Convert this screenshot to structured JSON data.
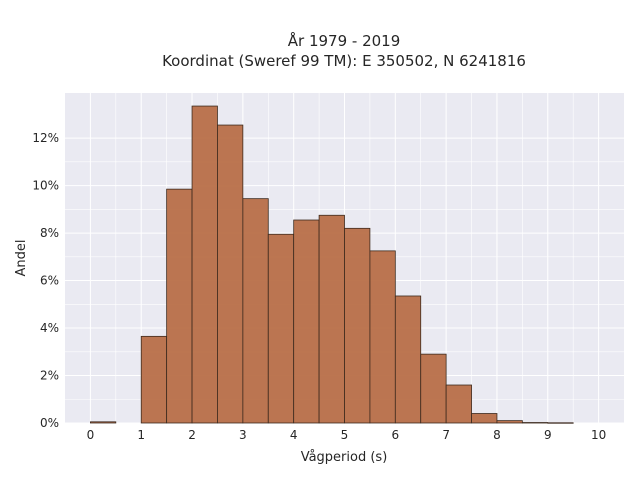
{
  "chart_data": {
    "type": "bar",
    "title_line1": "År 1979 - 2019",
    "title_line2": "Koordinat (Sweref 99 TM): E 350502, N 6241816",
    "xlabel": "Vågperiod (s)",
    "ylabel": "Andel",
    "xlim": [
      -0.5,
      10.5
    ],
    "ylim": [
      0,
      13.9
    ],
    "x_ticks": [
      0,
      1,
      2,
      3,
      4,
      5,
      6,
      7,
      8,
      9,
      10
    ],
    "x_tick_labels": [
      "0",
      "1",
      "2",
      "3",
      "4",
      "5",
      "6",
      "7",
      "8",
      "9",
      "10"
    ],
    "y_ticks": [
      0,
      2,
      4,
      6,
      8,
      10,
      12
    ],
    "y_tick_labels": [
      "0%",
      "2%",
      "4%",
      "6%",
      "8%",
      "10%",
      "12%"
    ],
    "bin_width": 0.5,
    "bins": [
      {
        "start": 0.0,
        "value": 0.05
      },
      {
        "start": 0.5,
        "value": 0.0
      },
      {
        "start": 1.0,
        "value": 3.65
      },
      {
        "start": 1.5,
        "value": 9.85
      },
      {
        "start": 2.0,
        "value": 13.35
      },
      {
        "start": 2.5,
        "value": 12.55
      },
      {
        "start": 3.0,
        "value": 9.45
      },
      {
        "start": 3.5,
        "value": 7.95
      },
      {
        "start": 4.0,
        "value": 8.55
      },
      {
        "start": 4.5,
        "value": 8.75
      },
      {
        "start": 5.0,
        "value": 8.2
      },
      {
        "start": 5.5,
        "value": 7.25
      },
      {
        "start": 6.0,
        "value": 5.35
      },
      {
        "start": 6.5,
        "value": 2.9
      },
      {
        "start": 7.0,
        "value": 1.6
      },
      {
        "start": 7.5,
        "value": 0.4
      },
      {
        "start": 8.0,
        "value": 0.1
      },
      {
        "start": 8.5,
        "value": 0.02
      },
      {
        "start": 9.0,
        "value": 0.01
      }
    ],
    "grid": true,
    "colors": {
      "bar_fill": "#b86f48",
      "bar_edge": "#3d2a1e",
      "plot_bg": "#eaeaf2",
      "grid": "#ffffff"
    }
  }
}
